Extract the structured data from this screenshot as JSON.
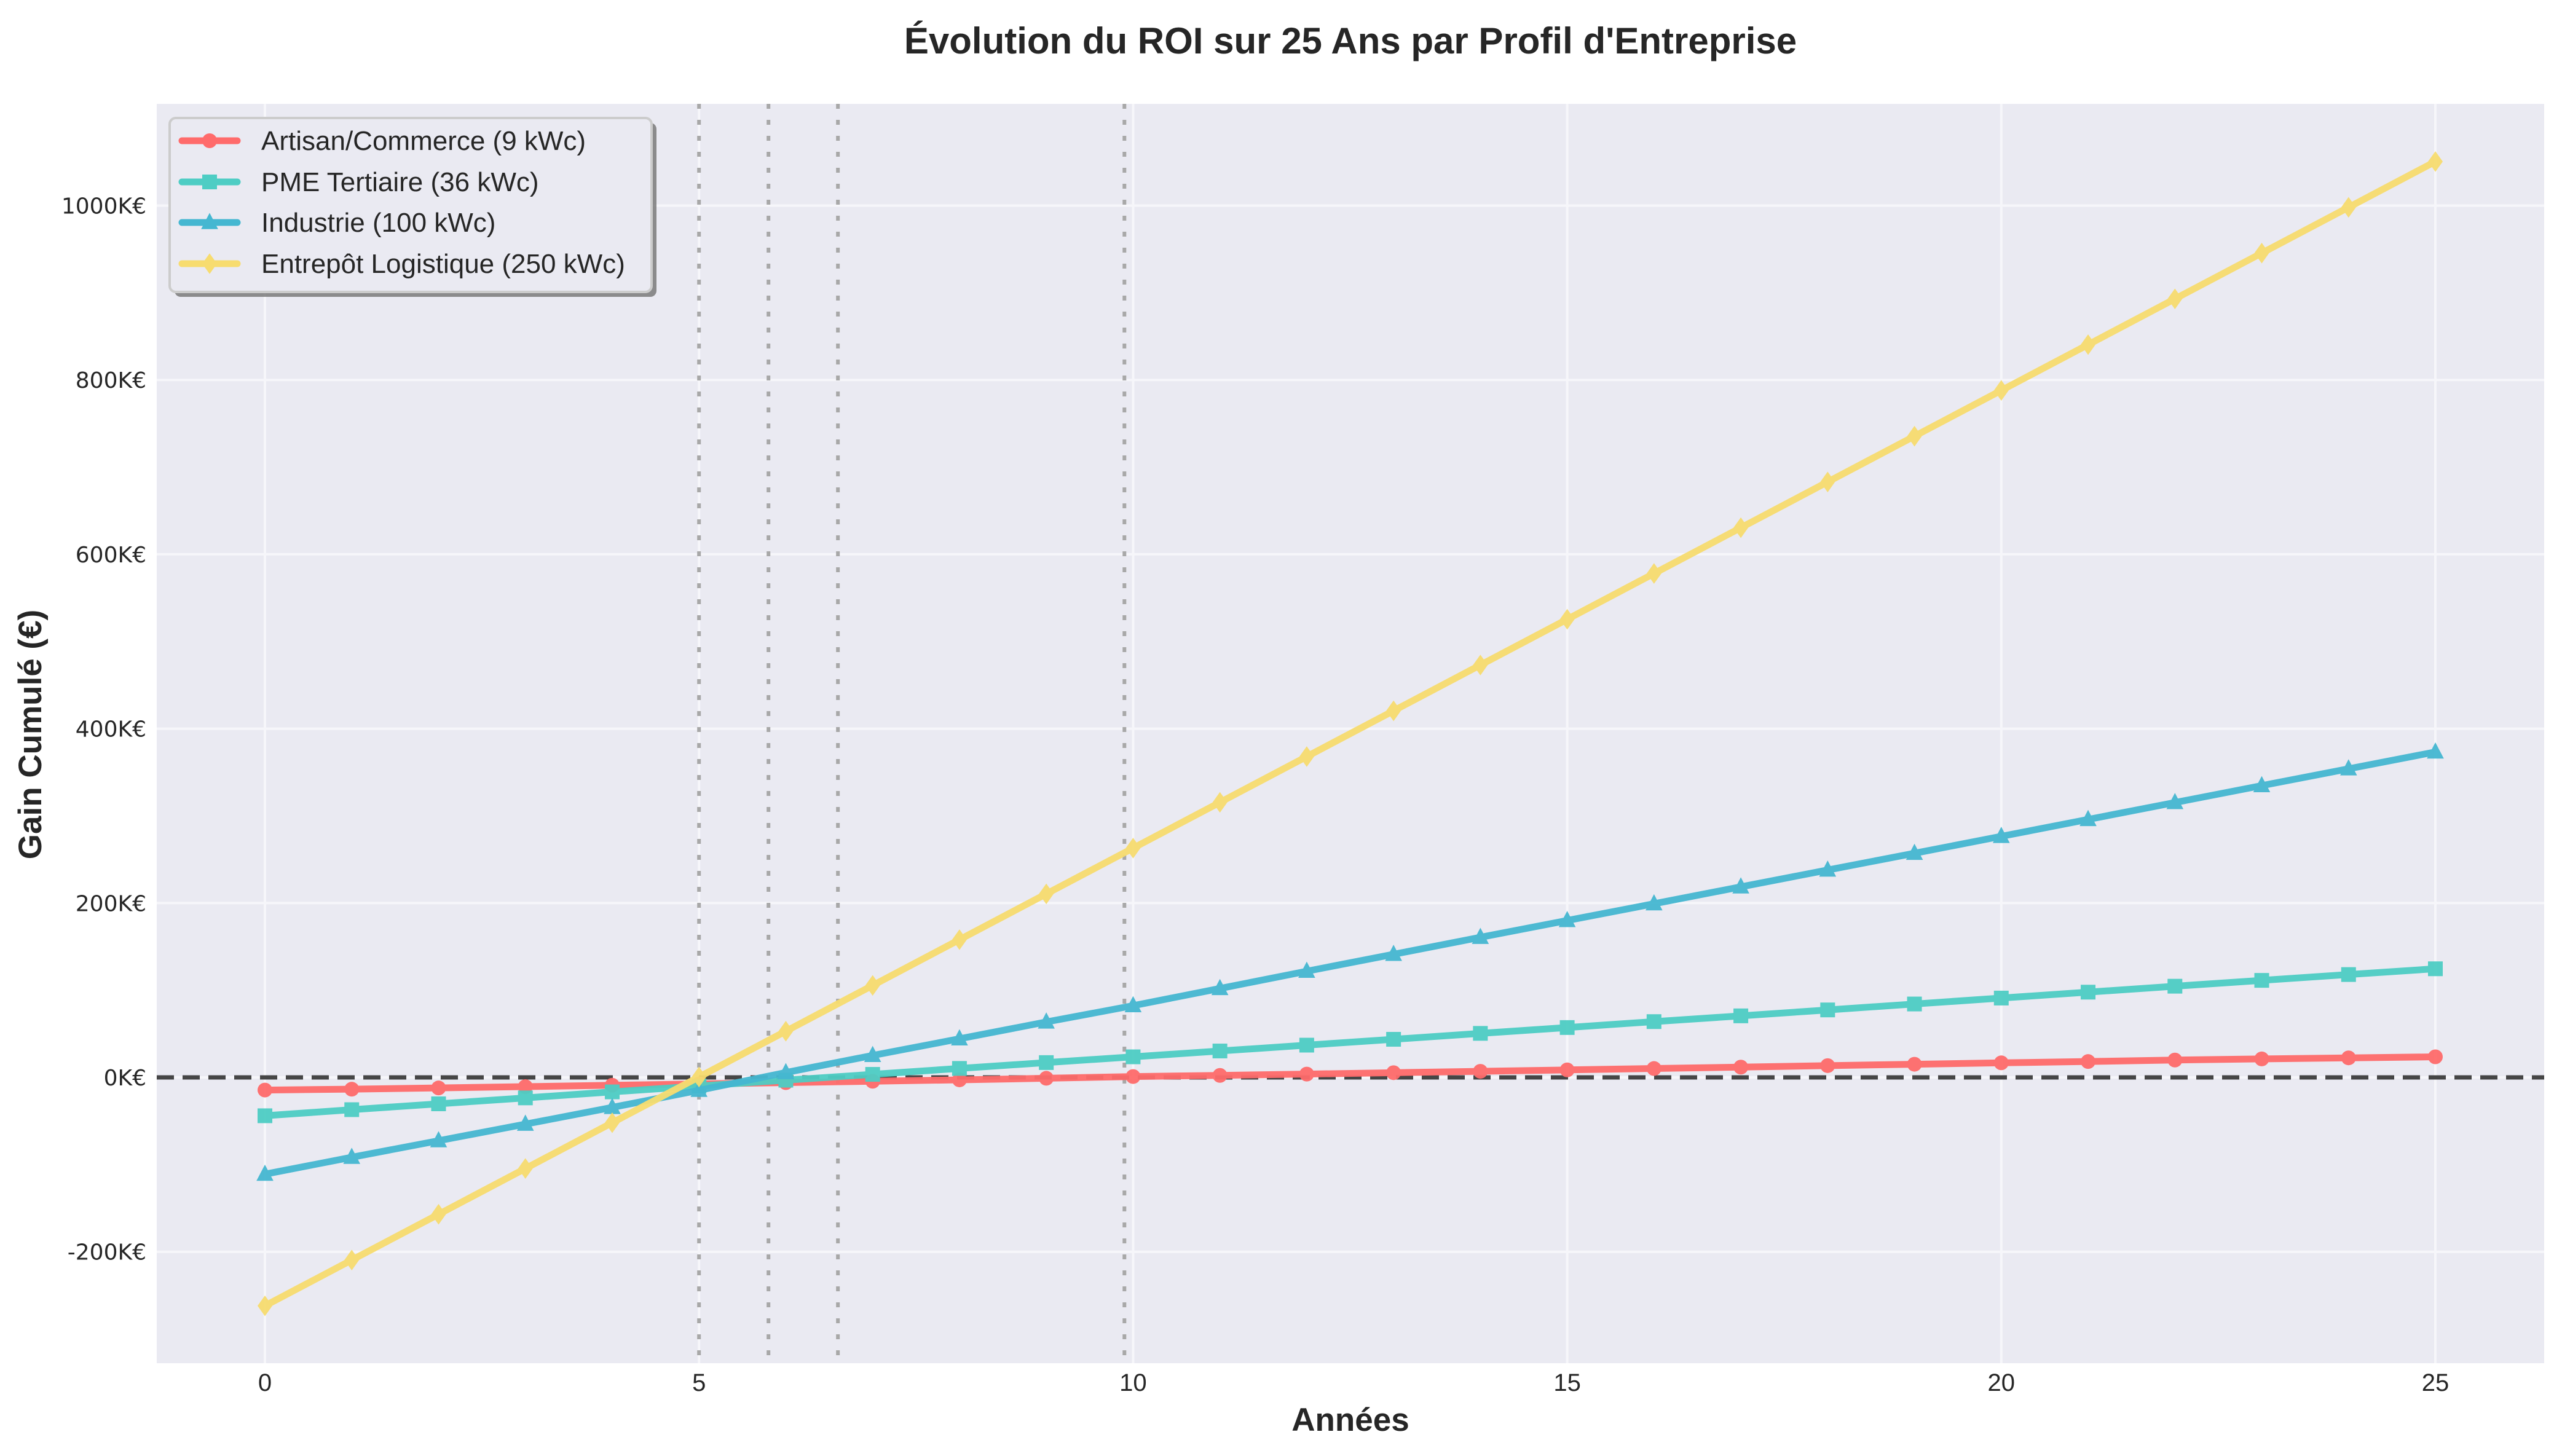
{
  "chart_data": {
    "type": "line",
    "title": "Évolution du ROI sur 25 Ans par Profil d'Entreprise",
    "xlabel": "Années",
    "ylabel": "Gain Cumulé (€)",
    "x": [
      0,
      1,
      2,
      3,
      4,
      5,
      6,
      7,
      8,
      9,
      10,
      11,
      12,
      13,
      14,
      15,
      16,
      17,
      18,
      19,
      20,
      21,
      22,
      23,
      24,
      25
    ],
    "xlim": [
      -1.25,
      26.25
    ],
    "ylim": [
      -328,
      1117
    ],
    "y_unit": "K€",
    "xticks": [
      0,
      5,
      10,
      15,
      20,
      25
    ],
    "yticks": [
      -200,
      0,
      200,
      400,
      600,
      800,
      1000
    ],
    "ytick_labels": [
      "-200K€",
      "0K€",
      "200K€",
      "400K€",
      "600K€",
      "800K€",
      "1000K€"
    ],
    "grid": true,
    "legend_position": "upper left",
    "zero_line": {
      "y": 0,
      "style": "dashed",
      "color": "#333333"
    },
    "breakeven_lines": {
      "x": [
        5.0,
        5.8,
        6.6,
        9.9
      ],
      "style": "dotted",
      "color": "#a8a8a8"
    },
    "series": [
      {
        "name": "Artisan/Commerce (9 kWc)",
        "color": "#ff6b6b",
        "marker": "circle",
        "values": [
          -14.5,
          -13.5,
          -12.1,
          -10.6,
          -9.0,
          -7.5,
          -6.0,
          -4.4,
          -2.8,
          -1.0,
          1.0,
          2.3,
          3.8,
          5.4,
          7.0,
          8.6,
          10.2,
          11.8,
          13.5,
          15.1,
          16.7,
          18.2,
          19.9,
          21.2,
          22.4,
          23.6
        ]
      },
      {
        "name": "PME Tertiaire (36 kWc)",
        "color": "#4ecdc4",
        "marker": "square",
        "values": [
          -44.0,
          -37.0,
          -30.3,
          -23.5,
          -16.6,
          -9.9,
          -3.2,
          3.5,
          10.3,
          17.0,
          23.6,
          30.3,
          37.0,
          43.7,
          50.5,
          57.2,
          64.0,
          70.6,
          77.4,
          84.2,
          91.0,
          97.8,
          104.6,
          111.3,
          118.0,
          124.6
        ]
      },
      {
        "name": "Industrie (100 kWc)",
        "color": "#45b7d1",
        "marker": "triangle",
        "values": [
          -111.0,
          -91.6,
          -72.6,
          -53.6,
          -34.4,
          -14.8,
          5.6,
          25.2,
          44.3,
          63.6,
          82.3,
          102.0,
          121.8,
          141.2,
          160.7,
          180.0,
          199.2,
          218.6,
          237.9,
          257.1,
          276.5,
          295.9,
          315.3,
          334.7,
          354.0,
          373.3
        ]
      },
      {
        "name": "Entrepôt Logistique (250 kWc)",
        "color": "#f7dc6f",
        "marker": "diamond",
        "values": [
          -262.0,
          -209.5,
          -157.0,
          -104.5,
          -52.0,
          0.5,
          53.0,
          105.5,
          158.0,
          210.5,
          263.0,
          315.5,
          368.0,
          420.5,
          473.0,
          525.5,
          578.0,
          630.5,
          683.0,
          735.5,
          788.0,
          840.5,
          893.0,
          945.5,
          998.0,
          1050.5
        ]
      }
    ]
  },
  "colors": {
    "plot_background": "#eaeaf2",
    "grid": "#f4f4f8",
    "text": "#262626"
  }
}
